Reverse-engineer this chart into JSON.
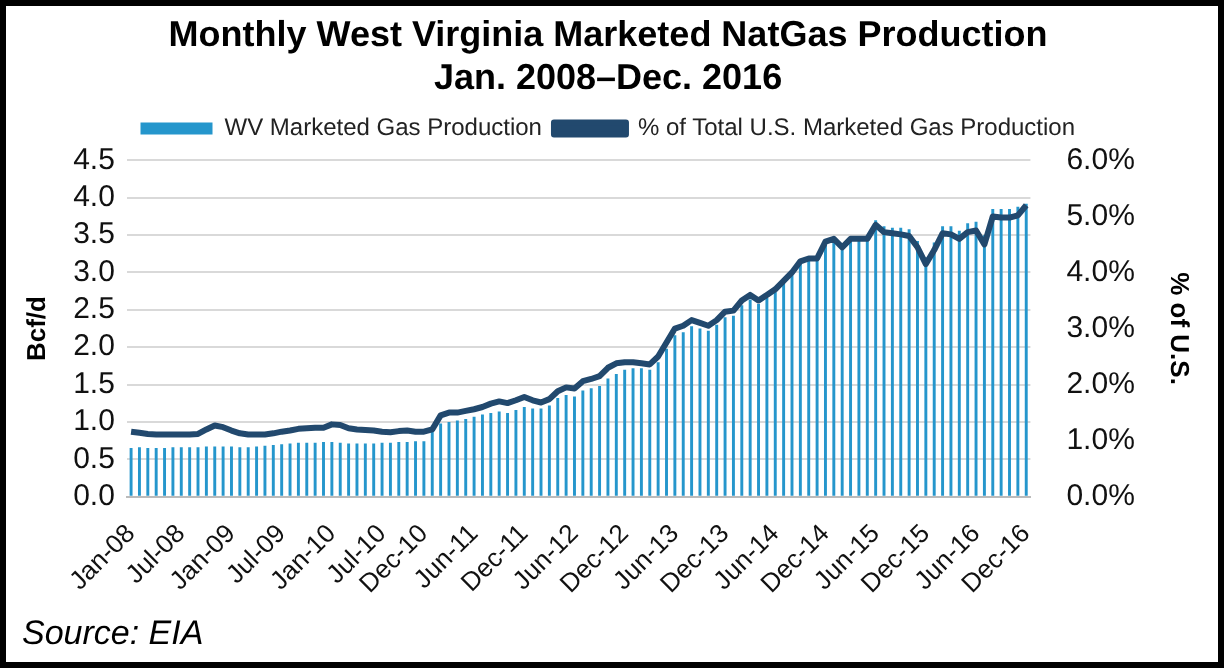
{
  "chart_data": {
    "type": "bar",
    "title": "Monthly West Virginia Marketed NatGas Production\nJan. 2008–Dec. 2016",
    "ylabel": "Bcf/d",
    "y2label": "% of U.S.",
    "categories": [
      "Jan-08",
      null,
      null,
      null,
      null,
      null,
      "Jul-08",
      null,
      null,
      null,
      null,
      null,
      "Jan-09",
      null,
      null,
      null,
      null,
      null,
      "Jul-09",
      null,
      null,
      null,
      null,
      null,
      "Jan-10",
      null,
      null,
      null,
      null,
      null,
      "Jul-10",
      null,
      null,
      null,
      null,
      "Dec-10",
      null,
      null,
      null,
      null,
      null,
      "Jun-11",
      null,
      null,
      null,
      null,
      null,
      "Dec-11",
      null,
      null,
      null,
      null,
      null,
      "Jun-12",
      null,
      null,
      null,
      null,
      null,
      "Dec-12",
      null,
      null,
      null,
      null,
      null,
      "Jun-13",
      null,
      null,
      null,
      null,
      null,
      "Dec-13",
      null,
      null,
      null,
      null,
      null,
      "Jun-14",
      null,
      null,
      null,
      null,
      null,
      "Dec-14",
      null,
      null,
      null,
      null,
      null,
      "Jun-15",
      null,
      null,
      null,
      null,
      null,
      "Dec-15",
      null,
      null,
      null,
      null,
      null,
      "Jun-16",
      null,
      null,
      null,
      null,
      null,
      "Dec-16"
    ],
    "series": [
      {
        "name": "WV Marketed Gas Production",
        "color": "#2596cc",
        "values": [
          0.65,
          0.66,
          0.65,
          0.65,
          0.65,
          0.66,
          0.66,
          0.66,
          0.66,
          0.67,
          0.67,
          0.67,
          0.67,
          0.66,
          0.66,
          0.67,
          0.68,
          0.69,
          0.7,
          0.71,
          0.72,
          0.72,
          0.72,
          0.73,
          0.73,
          0.72,
          0.71,
          0.71,
          0.71,
          0.71,
          0.72,
          0.72,
          0.73,
          0.73,
          0.74,
          0.74,
          0.95,
          0.98,
          1.0,
          1.02,
          1.04,
          1.07,
          1.1,
          1.12,
          1.14,
          1.12,
          1.16,
          1.2,
          1.18,
          1.18,
          1.22,
          1.32,
          1.36,
          1.34,
          1.42,
          1.45,
          1.48,
          1.58,
          1.64,
          1.7,
          1.72,
          1.72,
          1.7,
          1.8,
          1.98,
          2.16,
          2.2,
          2.28,
          2.25,
          2.22,
          2.3,
          2.4,
          2.42,
          2.56,
          2.64,
          2.58,
          2.66,
          2.74,
          2.86,
          2.98,
          3.12,
          3.16,
          3.18,
          3.4,
          3.45,
          3.35,
          3.46,
          3.48,
          3.5,
          3.7,
          3.62,
          3.6,
          3.6,
          3.58,
          3.42,
          3.2,
          3.4,
          3.62,
          3.62,
          3.56,
          3.66,
          3.68,
          3.5,
          3.85,
          3.85,
          3.85,
          3.88,
          3.92
        ]
      },
      {
        "name": "% of Total U.S. Marketed Gas Production",
        "type": "line",
        "axis": "y2",
        "color": "#22496e",
        "values": [
          1.16,
          1.14,
          1.12,
          1.11,
          1.11,
          1.11,
          1.11,
          1.11,
          1.12,
          1.2,
          1.27,
          1.24,
          1.18,
          1.13,
          1.11,
          1.11,
          1.11,
          1.13,
          1.16,
          1.18,
          1.21,
          1.22,
          1.23,
          1.23,
          1.29,
          1.28,
          1.22,
          1.2,
          1.19,
          1.18,
          1.16,
          1.15,
          1.17,
          1.18,
          1.16,
          1.16,
          1.2,
          1.45,
          1.5,
          1.5,
          1.53,
          1.56,
          1.6,
          1.66,
          1.7,
          1.67,
          1.72,
          1.78,
          1.72,
          1.68,
          1.74,
          1.88,
          1.95,
          1.93,
          2.06,
          2.1,
          2.15,
          2.3,
          2.38,
          2.4,
          2.4,
          2.38,
          2.36,
          2.5,
          2.75,
          3.0,
          3.05,
          3.15,
          3.1,
          3.05,
          3.15,
          3.3,
          3.32,
          3.5,
          3.6,
          3.5,
          3.6,
          3.7,
          3.85,
          4.0,
          4.2,
          4.25,
          4.25,
          4.55,
          4.6,
          4.45,
          4.6,
          4.6,
          4.6,
          4.85,
          4.72,
          4.7,
          4.68,
          4.65,
          4.45,
          4.15,
          4.4,
          4.7,
          4.68,
          4.6,
          4.72,
          4.75,
          4.5,
          5.0,
          4.98,
          4.98,
          5.02,
          5.2
        ]
      }
    ],
    "ylim": [
      0,
      4.5
    ],
    "yticks": [
      {
        "value": 0,
        "label": "0.0"
      },
      {
        "value": 0.5,
        "label": "0.5"
      },
      {
        "value": 1,
        "label": "1.0"
      },
      {
        "value": 1.5,
        "label": "1.5"
      },
      {
        "value": 2,
        "label": "2.0"
      },
      {
        "value": 2.5,
        "label": "2.5"
      },
      {
        "value": 3,
        "label": "3.0"
      },
      {
        "value": 3.5,
        "label": "3.5"
      },
      {
        "value": 4,
        "label": "4.0"
      },
      {
        "value": 4.5,
        "label": "4.5"
      }
    ],
    "y2lim": [
      0,
      6
    ],
    "y2ticks": [
      {
        "value": 0,
        "label": "0.0%"
      },
      {
        "value": 1,
        "label": "1.0%"
      },
      {
        "value": 2,
        "label": "2.0%"
      },
      {
        "value": 3,
        "label": "3.0%"
      },
      {
        "value": 4,
        "label": "4.0%"
      },
      {
        "value": 5,
        "label": "5.0%"
      },
      {
        "value": 6,
        "label": "6.0%"
      }
    ],
    "grid": "y",
    "legend": "top",
    "line_style": "solid",
    "annotations": [
      "Source: EIA"
    ]
  }
}
